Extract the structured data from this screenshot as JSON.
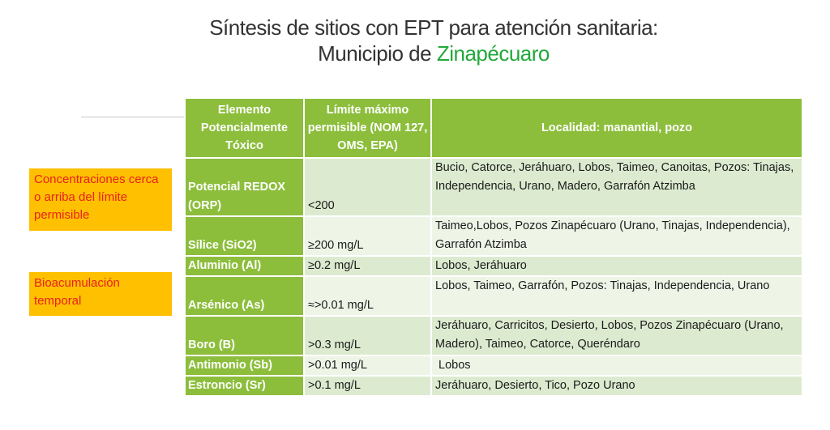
{
  "title": {
    "line1": "Síntesis de sitios con EPT para atención sanitaria:",
    "line2_prefix": "Municipio de ",
    "municipality": "Zinapécuaro"
  },
  "notes": [
    "Concentraciones cerca o arriba del límite permisible",
    "Bioacumulación temporal"
  ],
  "table": {
    "headers": {
      "element": "Elemento Potencialmente Tóxico",
      "limit": "Límite máximo permisible (NOM 127, OMS, EPA)",
      "locality": "Localidad: manantial, pozo"
    },
    "rows": [
      {
        "element": "Potencial REDOX (ORP)",
        "limit": "<200",
        "locality": "Bucio, Catorce, Jeráhuaro, Lobos, Taimeo, Canoitas, Pozos: Tinajas, Independencia, Urano, Madero, Garrafón Atzimba"
      },
      {
        "element": "Sílice (SiO2)",
        "limit": "≥200 mg/L",
        "locality": "Taimeo,Lobos,  Pozos Zinapécuaro (Urano, Tinajas, Independencia), Garrafón Atzimba"
      },
      {
        "element": "Aluminio (Al)",
        "limit": "≥0.2 mg/L",
        "locality": "Lobos, Jeráhuaro"
      },
      {
        "element": "Arsénico (As)",
        "limit": "≈>0.01 mg/L",
        "locality": "Lobos, Taimeo, Garrafón, Pozos: Tinajas, Independencia, Urano"
      },
      {
        "element": "Boro (B)",
        "limit": ">0.3 mg/L",
        "locality": "Jeráhuaro, Carricitos, Desierto, Lobos, Pozos Zinapécuaro (Urano, Madero), Taimeo, Catorce, Queréndaro"
      },
      {
        "element": "Antimonio (Sb)",
        "limit": ">0.01 mg/L",
        "locality": " Lobos"
      },
      {
        "element": "Estroncio (Sr)",
        "limit": ">0.1 mg/L",
        "locality": "Jeráhuaro, Desierto, Tico, Pozo Urano"
      }
    ]
  },
  "colors": {
    "header_green": "#8cbe3c",
    "row_light": "#dcebd0",
    "row_lighter": "#eef5e7",
    "note_bg": "#ffc000",
    "note_text": "#e8201c",
    "municipality_text": "#22a83a"
  }
}
